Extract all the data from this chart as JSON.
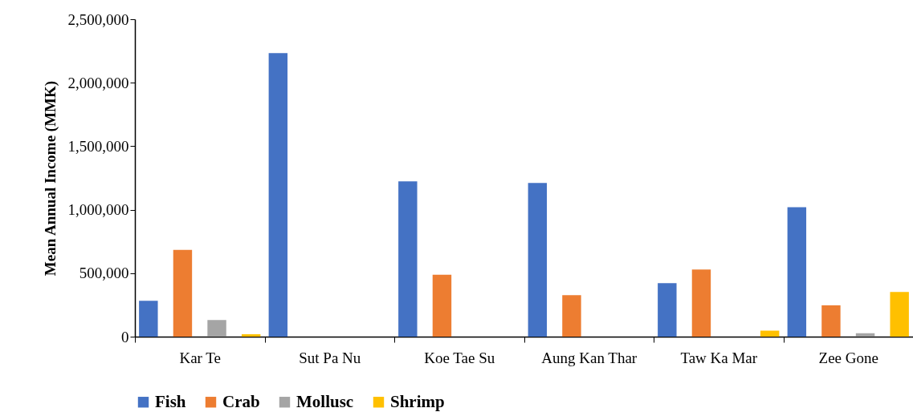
{
  "chart_data": {
    "type": "bar",
    "ylabel": "Mean Annual Income (MMK)",
    "categories": [
      "Kar Te",
      "Sut Pa Nu",
      "Koe Tae Su",
      "Aung Kan Thar",
      "Taw Ka Mar",
      "Zee Gone"
    ],
    "series": [
      {
        "name": "Fish",
        "color": "#4472c4",
        "values": [
          282000,
          2234000,
          1223000,
          1210000,
          422000,
          1020000
        ]
      },
      {
        "name": "Crab",
        "color": "#ed7d31",
        "values": [
          683000,
          0,
          487000,
          327000,
          529000,
          247000
        ]
      },
      {
        "name": "Mollusc",
        "color": "#a5a5a5",
        "values": [
          131000,
          0,
          0,
          0,
          0,
          27000
        ]
      },
      {
        "name": "Shrimp",
        "color": "#ffc000",
        "values": [
          19000,
          0,
          0,
          0,
          48000,
          352000
        ]
      }
    ],
    "ylim": [
      0,
      2500000
    ],
    "yticks": [
      {
        "value": 0,
        "label": "0"
      },
      {
        "value": 500000,
        "label": "500,000"
      },
      {
        "value": 1000000,
        "label": "1,000,000"
      },
      {
        "value": 1500000,
        "label": "1,500,000"
      },
      {
        "value": 2000000,
        "label": "2,000,000"
      },
      {
        "value": 2500000,
        "label": "2,500,000"
      }
    ],
    "grid": false,
    "legend": "bottom"
  }
}
